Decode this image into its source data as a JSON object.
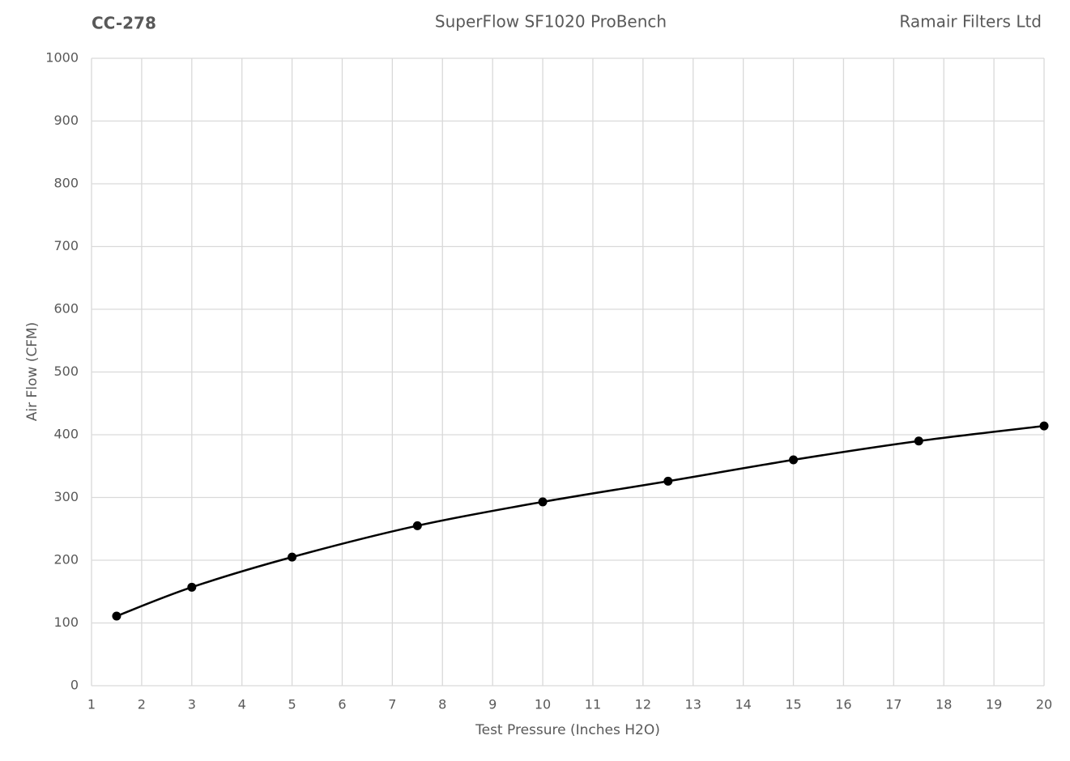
{
  "chart_data": {
    "type": "line",
    "title": "SuperFlow SF1020 ProBench",
    "test_id": "CC-278",
    "company": "Ramair Filters Ltd",
    "x_label": "Test Pressure (Inches H2O)",
    "y_label": "Air Flow (CFM)",
    "x": [
      1.5,
      3,
      5,
      7.5,
      10,
      12.5,
      15,
      17.5,
      20
    ],
    "values": [
      111,
      157,
      205,
      255,
      293,
      326,
      360,
      390,
      414
    ],
    "color": "#000000",
    "smooth": true,
    "markers": true,
    "xlim": [
      1,
      20
    ],
    "xticks": [
      1,
      2,
      3,
      4,
      5,
      6,
      7,
      8,
      9,
      10,
      11,
      12,
      13,
      14,
      15,
      16,
      17,
      18,
      19,
      20
    ],
    "ylim": [
      0,
      1000
    ],
    "yticks": [
      0,
      100,
      200,
      300,
      400,
      500,
      600,
      700,
      800,
      900,
      1000
    ],
    "grid": true
  }
}
